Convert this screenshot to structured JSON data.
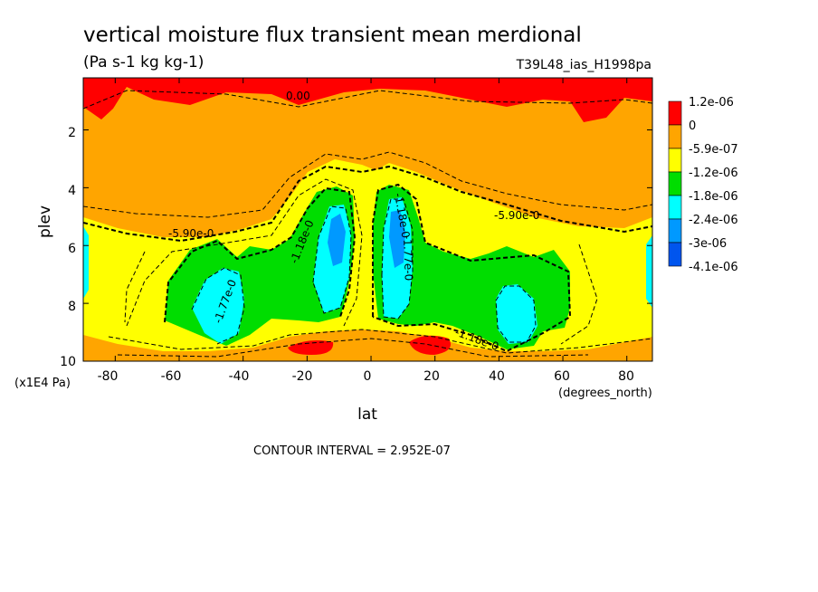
{
  "chart_data": {
    "type": "heatmap",
    "title": "vertical moisture flux transient mean merdional",
    "units": "(Pa s-1 kg kg-1)",
    "dataset": "T39L48_ias_H1998pa",
    "xlabel": "lat",
    "x_units": "(degrees_north)",
    "ylabel": "plev",
    "y_units": "(x1E4 Pa)",
    "xlim": [
      -90,
      88
    ],
    "ylim": [
      10,
      0.2
    ],
    "x_ticks": [
      "-80",
      "-60",
      "-40",
      "-20",
      "0",
      "20",
      "40",
      "60",
      "80"
    ],
    "y_ticks": [
      "2",
      "4",
      "6",
      "8",
      "10"
    ],
    "contour_interval_text": "CONTOUR INTERVAL = 2.952E-07",
    "legend": {
      "labels": [
        "1.2e-06",
        "0",
        "-5.9e-07",
        "-1.2e-06",
        "-1.8e-06",
        "-2.4e-06",
        "-3e-06",
        "-4.1e-06"
      ],
      "colors": [
        "#ff0000",
        "#ffa500",
        "#ffff00",
        "#00dd00",
        "#00ffff",
        "#0099ff",
        "#0055ee"
      ]
    },
    "contour_labels": [
      "0.00",
      "-5.90e-0",
      "-5.90e-0",
      "-1.18e-0",
      "-1.77e-0",
      "-1.18e-0",
      "-1.77e-0",
      "-1.18e-0"
    ]
  }
}
